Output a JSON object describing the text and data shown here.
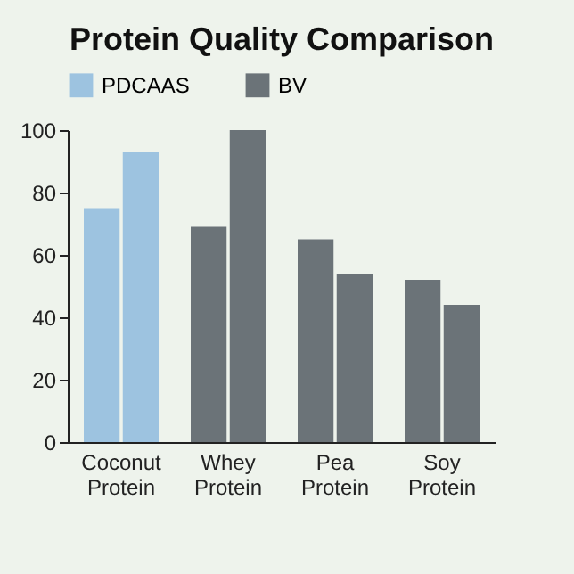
{
  "chart_data": {
    "type": "bar",
    "title": "Protein Quality Comparison",
    "categories": [
      "Coconut\nProtein",
      "Whey\nProtein",
      "Pea\nProtein",
      "Soy\nProtein"
    ],
    "series": [
      {
        "name": "PDCAAS",
        "color": "#9dc3e0",
        "colors": [
          "#9dc3e0",
          "#6b7378",
          "#6b7378",
          "#6b7378"
        ],
        "values": [
          75,
          69,
          65,
          52
        ]
      },
      {
        "name": "BV",
        "color": "#6b7378",
        "colors": [
          "#9dc3e0",
          "#6b7378",
          "#6b7378",
          "#6b7378"
        ],
        "values": [
          93,
          100,
          54,
          44
        ]
      }
    ],
    "ylim": [
      0,
      100
    ],
    "yticks": [
      0,
      20,
      40,
      60,
      80,
      100
    ],
    "grid": false,
    "legend": "top"
  }
}
